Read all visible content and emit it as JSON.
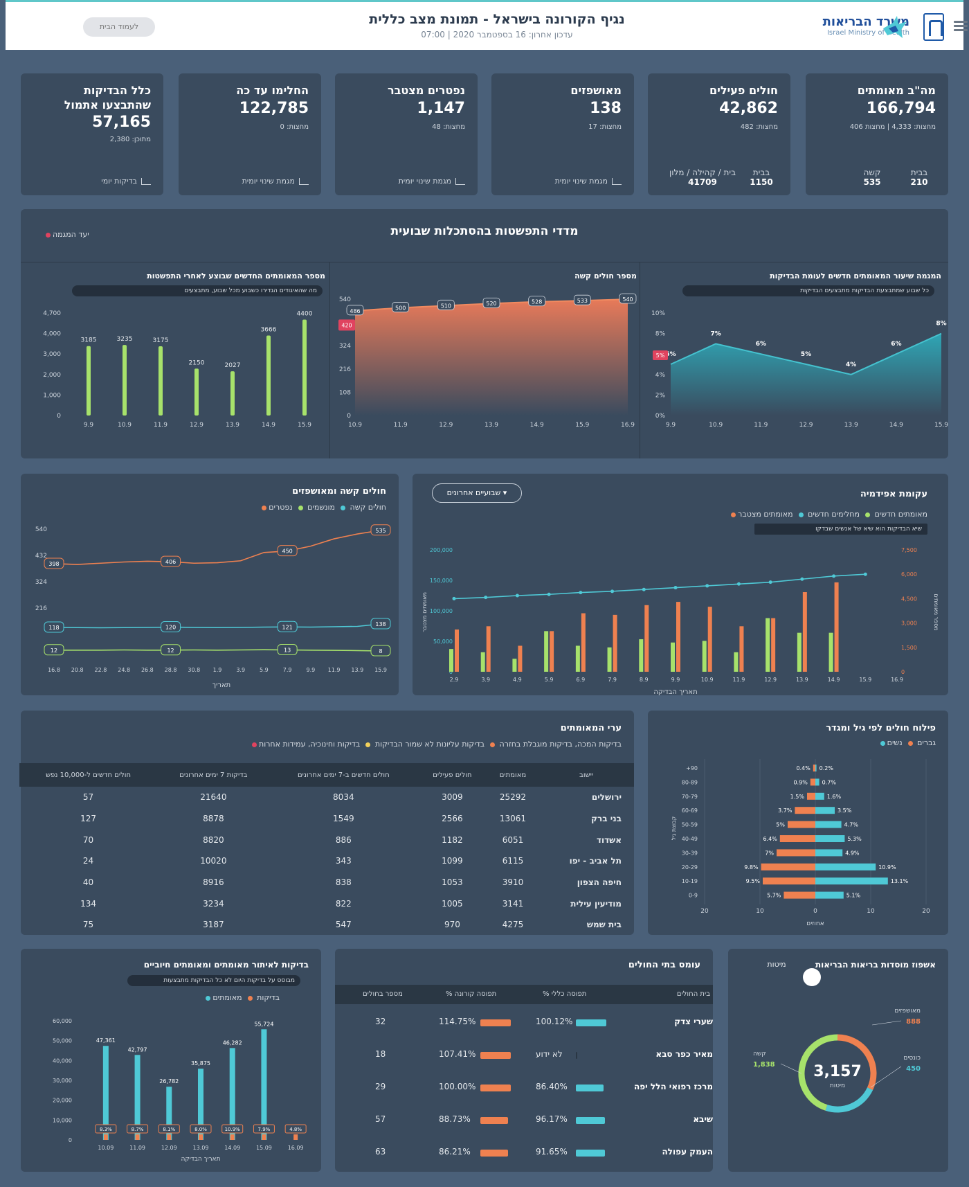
{
  "header": {
    "title": "נגיף הקורונה בישראל - תמונת מצב כללית",
    "updated": "עדכון אחרון: 16 בספטמבר 2020 | 07:00",
    "pill": "לעמוד הבית",
    "logo_he": "משרד הבריאות",
    "logo_en": "Israel Ministry of Health"
  },
  "kpis": [
    {
      "title": "מה\"ב מאומתים",
      "value": "166,794",
      "sub": "מחצות: 4,333 | מחצות 406",
      "c1_label": "בבית",
      "c1_value": "210",
      "c2_label": "קשה",
      "c2_value": "535"
    },
    {
      "title": "חולים פעילים",
      "value": "42,862",
      "sub": "מחצות: 482",
      "c1_label": "בבית",
      "c1_value": "1150",
      "c2_label": "בית / קהילה / מלון",
      "c2_value": "41709"
    },
    {
      "title": "מאושפזים",
      "value": "138",
      "sub": "מחצות: 17",
      "bottom": "מגמת שינוי יומית"
    },
    {
      "title": "נפטרים מצטבר",
      "value": "1,147",
      "sub": "מחצות: 48",
      "bottom": "מגמת שינוי יומית"
    },
    {
      "title": "החלימו עד כה",
      "value": "122,785",
      "sub": "מחצות: 0",
      "bottom": "מגמת שינוי יומית"
    },
    {
      "title": "כלל הבדיקות שהתבצעו אתמול",
      "value": "57,165",
      "sub": "מתוכן: 2,380",
      "bottom": "בדיקות יומי"
    }
  ],
  "trend": {
    "title": "מדדי התפשטות בהסתכלות שבועית",
    "legend": "יעד המגמה",
    "c1": {
      "title": "מספר המאומתים החדשים שבוצע לאחרי התפשטות",
      "note": "מה שהאיגודים הגדירו כשבוע מכל שבוע, מתבצעים"
    },
    "c2": {
      "title": "מספר חולים קשה"
    },
    "c3": {
      "title": "המגמה שיעור המאומתים חדשים לעומת הבדיקות",
      "note": "כל שבוע שמתבצעת הבדיקות מתבצעים הבדיקות"
    }
  },
  "chart_data": [
    {
      "type": "bar",
      "categories": [
        "9.9",
        "10.9",
        "11.9",
        "12.9",
        "13.9",
        "14.9",
        "15.9"
      ],
      "values": [
        3185,
        3235,
        3175,
        2150,
        2027,
        3666,
        4400
      ],
      "ylim": [
        0,
        4700
      ],
      "yticks": [
        "4,700",
        "4,000",
        "3,000",
        "2,000",
        "1,000",
        "0"
      ]
    },
    {
      "type": "area",
      "categories": [
        "10.9",
        "11.9",
        "12.9",
        "13.9",
        "14.9",
        "15.9",
        "16.9"
      ],
      "values": [
        "486",
        "500",
        "510",
        "520",
        "528",
        "533",
        "540"
      ],
      "ylim": [
        0,
        540
      ],
      "yticks": [
        "540",
        "432",
        "324",
        "216",
        "108",
        "0"
      ],
      "marker": "420"
    },
    {
      "type": "area",
      "categories": [
        "9.9",
        "10.9",
        "11.9",
        "12.9",
        "13.9",
        "14.9",
        "15.9"
      ],
      "values": [
        5,
        7,
        6,
        5,
        4,
        6,
        8
      ],
      "labels": [
        "5%",
        "7%",
        "6%",
        "5%",
        "4%",
        "6%",
        "8%"
      ],
      "ylim": [
        0,
        10
      ],
      "yticks": [
        "10%",
        "8%",
        "6%",
        "4%",
        "2%",
        "0%"
      ],
      "marker": "5%"
    },
    {
      "type": "line",
      "title": "חולים קשה ומאושפזים",
      "legend": [
        "חולים קשה",
        "מונשמים",
        "נפטרים"
      ],
      "x": [
        "16.8",
        "20.8",
        "22.8",
        "24.8",
        "26.8",
        "28.8",
        "30.8",
        "1.9",
        "3.9",
        "5.9",
        "7.9",
        "9.9",
        "11.9",
        "13.9",
        "15.9"
      ],
      "series": [
        {
          "name": "חולים קשה",
          "values": [
            398,
            395,
            400,
            405,
            408,
            406,
            400,
            402,
            410,
            444,
            450,
            470,
            500,
            520,
            535
          ]
        },
        {
          "name": "מונשמים",
          "values": [
            118,
            117,
            116,
            117,
            118,
            120,
            118,
            117,
            118,
            120,
            121,
            120,
            122,
            124,
            138
          ]
        },
        {
          "name": "נפטרים",
          "values": [
            12,
            12,
            12,
            13,
            12,
            12,
            13,
            12,
            13,
            14,
            13,
            12,
            11,
            10,
            8
          ]
        }
      ],
      "ylim": [
        0,
        540
      ],
      "yticks": [
        "540",
        "432",
        "324",
        "216"
      ],
      "xlabel": "תאריך"
    },
    {
      "type": "bar",
      "title": "עקומת אפידמיה",
      "legend": [
        "מאומתים חדשים",
        "מחלימים חדשים",
        "מאומתים מצטבר"
      ],
      "note": "שיא הבדיקות הוא שיא של אנשים שבדקו",
      "dropdown": "שבועיים אחרונים",
      "x": [
        "2.9",
        "3.9",
        "4.9",
        "5.9",
        "6.9",
        "7.9",
        "8.9",
        "9.9",
        "10.9",
        "11.9",
        "12.9",
        "13.9",
        "14.9",
        "15.9",
        "16.9"
      ],
      "series": [
        {
          "name": "מאומתים חדשים",
          "values": [
            2600,
            2800,
            1600,
            2500,
            3600,
            3500,
            4100,
            4300,
            4000,
            2800,
            3300,
            4900,
            5500,
            0,
            0
          ]
        },
        {
          "name": "מחלימים חדשים",
          "values": [
            1400,
            1200,
            800,
            2500,
            1600,
            1500,
            2000,
            1800,
            1900,
            1200,
            3300,
            2400,
            2400,
            0,
            0
          ]
        },
        {
          "name": "מאומתים מצטבר",
          "values": [
            120,
            122,
            125,
            127,
            130,
            132,
            135,
            138,
            141,
            144,
            147,
            152,
            157,
            160,
            0
          ]
        }
      ],
      "y_left_ticks": [
        "200,000",
        "150,000",
        "100,000",
        "50,000",
        "0"
      ],
      "y_right_ticks": [
        "7,500",
        "6,000",
        "4,500",
        "3,000",
        "1,500",
        "0"
      ],
      "ylabel": "מאומתים מצטבר",
      "ylabel_right": "מספר מאומתים",
      "xlabel": "תאריך הבדיקה"
    },
    {
      "type": "bar",
      "title": "פילוח חולים לפי גיל ומגדר",
      "legend": [
        "גברים",
        "נשים"
      ],
      "categories": [
        "0-9",
        "10-19",
        "20-29",
        "30-39",
        "40-49",
        "50-59",
        "60-69",
        "70-79",
        "80-89",
        "+90"
      ],
      "series": [
        {
          "name": "גברים",
          "values": [
            5.1,
            13.1,
            10.9,
            4.9,
            5.3,
            4.7,
            3.5,
            1.6,
            0.7,
            0.2
          ],
          "labels": [
            "5.1%",
            "13.1%",
            "10.9%",
            "4.9%",
            "5.3%",
            "4.7%",
            "3.5%",
            "1.6%",
            "0.7%",
            "0.2%"
          ]
        },
        {
          "name": "נשים",
          "values": [
            5.7,
            9.5,
            9.8,
            7.0,
            6.4,
            5.0,
            3.7,
            1.5,
            0.9,
            0.4
          ],
          "labels": [
            "5.7%",
            "9.5%",
            "9.8%",
            "7%",
            "6.4%",
            "5%",
            "3.7%",
            "1.5%",
            "0.9%",
            "0.4%"
          ]
        }
      ],
      "xticks": [
        "20",
        "10",
        "0",
        "10",
        "20"
      ],
      "xlabel": "אחוזים",
      "ylabel": "קבוצת גיל"
    },
    {
      "type": "bar",
      "title": "בדיקות לאיתור מאומתים ומאומתים חיוביים",
      "note": "מבוסס על בדיקות היום לא כל הבדיקות מתבצעות",
      "legend": [
        "בדיקות",
        "מאומתים"
      ],
      "categories": [
        "10.09",
        "11.09",
        "12.09",
        "13.09",
        "14.09",
        "15.09",
        "16.09"
      ],
      "values": [
        47361,
        42797,
        26782,
        35875,
        46282,
        55724,
        0
      ],
      "labels": [
        "47,361",
        "42,797",
        "26,782",
        "35,875",
        "46,282",
        "55,724",
        ""
      ],
      "pct": [
        "8.3%",
        "8.7%",
        "8.1%",
        "8.0%",
        "10.9%",
        "7.9%",
        "4.8%"
      ],
      "ylim": [
        0,
        60000
      ],
      "yticks": [
        "60,000",
        "50,000",
        "40,000",
        "30,000",
        "20,000",
        "10,000",
        "0"
      ],
      "xlabel": "תאריך הבדיקה"
    },
    {
      "type": "pie",
      "title": "אשפוז מוסדות בריאות הבריאות",
      "center_value": "3,157",
      "center_label": "מיטות",
      "labels": [
        "מאושפזים",
        "כונסים",
        "קשה"
      ],
      "values": [
        "888",
        "450",
        "1,838"
      ],
      "legend": "מיטות אשפוז",
      "toggle": "מיטות"
    }
  ],
  "cities": {
    "title": "ערי המאומתים",
    "legend": [
      "בדיקות המכה, בדיקות מוגבלת בחזרה",
      "בדיקות עליונות לא שמור הבדיקות",
      "בדיקות וחינוכיה, עמידות אחרות"
    ],
    "headers": [
      "יישוב",
      "מאומתים",
      "חולים פעילים",
      "חולים חדשים ב-7 ימים אחרונים",
      "בדיקות 7 ימים אחרונים",
      "חולים חדשים ל-10,000 נפש"
    ],
    "rows": [
      [
        "ירושלים",
        "25292",
        "3009",
        "8034",
        "21640",
        "57"
      ],
      [
        "בני ברק",
        "13061",
        "2566",
        "1549",
        "8878",
        "127"
      ],
      [
        "אשדוד",
        "6051",
        "1182",
        "886",
        "8820",
        "70"
      ],
      [
        "תל אביב - יפו",
        "6115",
        "1099",
        "343",
        "10020",
        "24"
      ],
      [
        "חיפה הצפון",
        "3910",
        "1053",
        "838",
        "8916",
        "40"
      ],
      [
        "מודיעין עילית",
        "3141",
        "1005",
        "822",
        "3234",
        "134"
      ],
      [
        "בית שמש",
        "4275",
        "970",
        "547",
        "3187",
        "75"
      ]
    ]
  },
  "hospitals": {
    "title": "עומס בתי החולים",
    "headers": [
      "בית החולים",
      "% תפוסה כללי",
      "% תפוסה קורונה",
      "מספר בחולים"
    ],
    "rows": [
      {
        "name": "שערי צדק",
        "a": "100.12%",
        "aw": 44,
        "b": "114.75%",
        "bw": 44,
        "c": "32"
      },
      {
        "name": "מאיר כפר סבא",
        "a": "לא ידוע",
        "aw": 0,
        "b": "107.41%",
        "bw": 44,
        "c": "18"
      },
      {
        "name": "מרכז רפואי הלל יפה",
        "a": "86.40%",
        "aw": 40,
        "b": "100.00%",
        "bw": 44,
        "c": "29"
      },
      {
        "name": "שיבא",
        "a": "96.17%",
        "aw": 42,
        "b": "88.73%",
        "bw": 40,
        "c": "57"
      },
      {
        "name": "העמק עפולה",
        "a": "91.65%",
        "aw": 42,
        "b": "86.21%",
        "bw": 40,
        "c": "63"
      }
    ]
  },
  "colors": {
    "bg": "#4a6079",
    "panel": "#3a4b5e",
    "green": "#a7e26b",
    "cyan": "#4fc9d6",
    "orange": "#ef8150",
    "red": "#e0435f"
  }
}
